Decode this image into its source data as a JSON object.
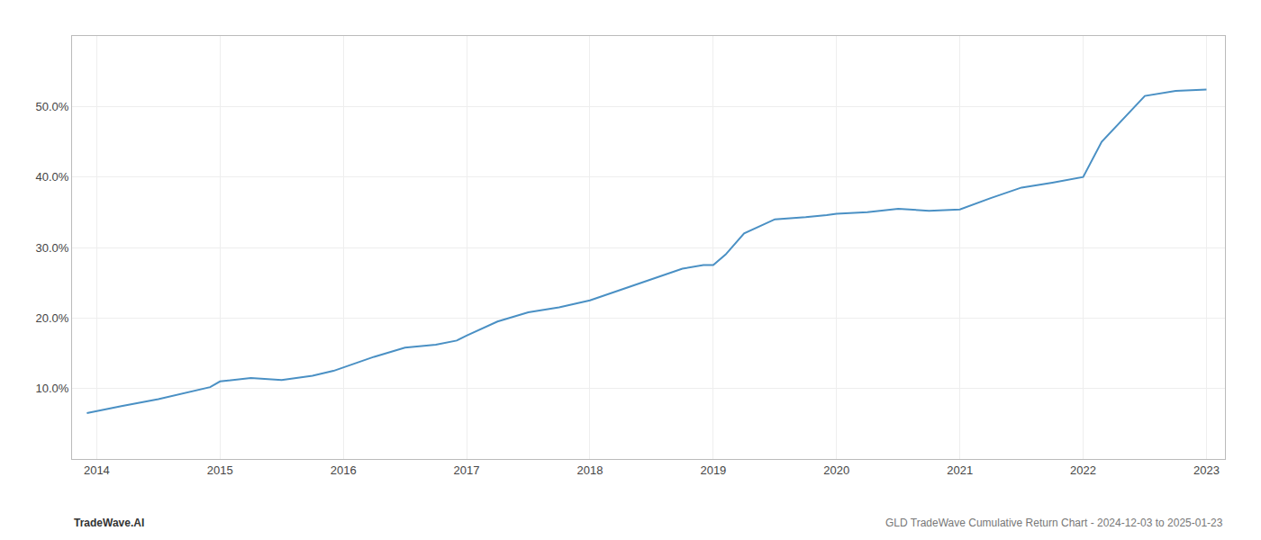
{
  "chart_data": {
    "type": "line",
    "title": "GLD TradeWave Cumulative Return Chart - 2024-12-03 to 2025-01-23",
    "annotations": [
      "TradeWave.AI"
    ],
    "x": [
      2013.92,
      2014.0,
      2014.2,
      2014.5,
      2014.75,
      2014.92,
      2015.0,
      2015.25,
      2015.5,
      2015.75,
      2015.92,
      2016.0,
      2016.25,
      2016.5,
      2016.75,
      2016.92,
      2017.0,
      2017.25,
      2017.5,
      2017.75,
      2017.92,
      2018.0,
      2018.25,
      2018.5,
      2018.75,
      2018.92,
      2019.0,
      2019.1,
      2019.25,
      2019.5,
      2019.75,
      2019.92,
      2020.0,
      2020.25,
      2020.5,
      2020.75,
      2020.92,
      2021.0,
      2021.25,
      2021.5,
      2021.75,
      2021.92,
      2022.0,
      2022.15,
      2022.5,
      2022.75,
      2022.92,
      2023.0
    ],
    "values": [
      6.5,
      6.8,
      7.5,
      8.5,
      9.5,
      10.2,
      11.0,
      11.5,
      11.2,
      11.8,
      12.5,
      13.0,
      14.5,
      15.8,
      16.2,
      16.8,
      17.5,
      19.5,
      20.8,
      21.5,
      22.2,
      22.5,
      24.0,
      25.5,
      27.0,
      27.5,
      27.5,
      29.0,
      32.0,
      34.0,
      34.3,
      34.6,
      34.8,
      35.0,
      35.5,
      35.2,
      35.3,
      35.4,
      37.0,
      38.5,
      39.2,
      39.8,
      40.0,
      45.0,
      51.5,
      52.2,
      52.4,
      52.4
    ],
    "color": "#4a90c4",
    "xlim": [
      2013.8,
      2023.15
    ],
    "ylim": [
      0,
      60
    ],
    "xticks": [
      2014,
      2015,
      2016,
      2017,
      2018,
      2019,
      2020,
      2021,
      2022,
      2023
    ],
    "yticks": [
      {
        "value": 10.0,
        "label": "10.0%"
      },
      {
        "value": 20.0,
        "label": "20.0%"
      },
      {
        "value": 30.0,
        "label": "30.0%"
      },
      {
        "value": 40.0,
        "label": "40.0%"
      },
      {
        "value": 50.0,
        "label": "50.0%"
      }
    ],
    "grid": true
  }
}
